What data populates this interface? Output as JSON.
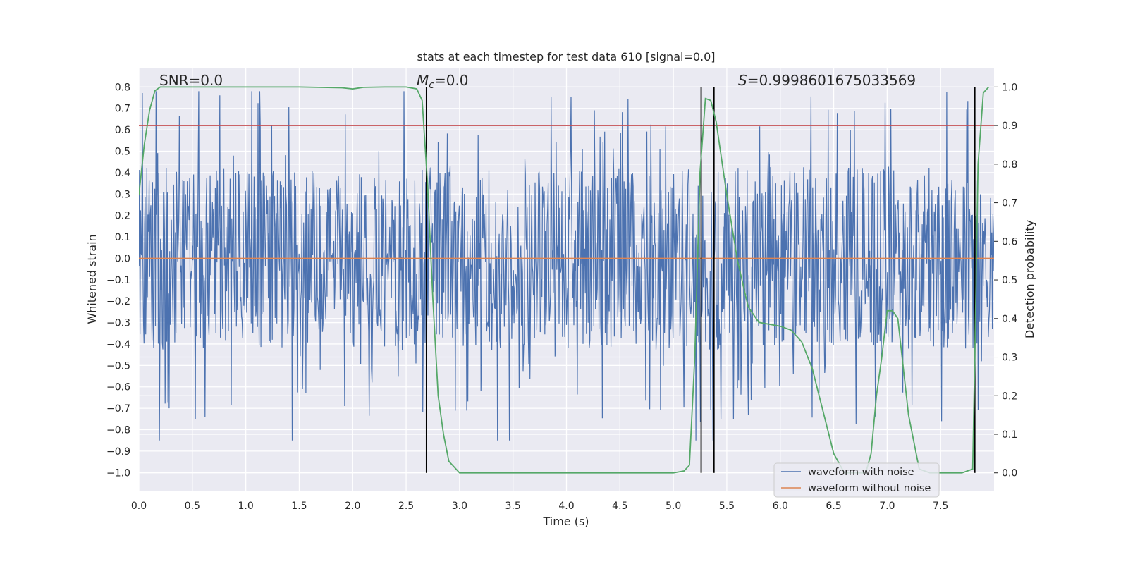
{
  "chart_data": {
    "type": "line",
    "title": "stats at each timestep for test data 610 [signal=0.0]",
    "xlabel": "Time (s)",
    "ylabel": "Whitened strain",
    "ylabel_right": "Detection probability",
    "xlim": [
      0.0,
      8.0
    ],
    "ylim": [
      -1.088,
      0.89
    ],
    "ylim_right": [
      -0.048,
      1.05
    ],
    "x_ticks": [
      "0.0",
      "0.5",
      "1.0",
      "1.5",
      "2.0",
      "2.5",
      "3.0",
      "3.5",
      "4.0",
      "4.5",
      "5.0",
      "5.5",
      "6.0",
      "6.5",
      "7.0",
      "7.5"
    ],
    "y_ticks": [
      "0.8",
      "0.7",
      "0.6",
      "0.5",
      "0.4",
      "0.3",
      "0.2",
      "0.1",
      "0.0",
      "−0.1",
      "−0.2",
      "−0.3",
      "−0.4",
      "−0.5",
      "−0.6",
      "−0.7",
      "−0.8",
      "−0.9",
      "−1.0"
    ],
    "y_ticks_right": [
      "1.0",
      "0.9",
      "0.8",
      "0.7",
      "0.6",
      "0.5",
      "0.4",
      "0.3",
      "0.2",
      "0.1",
      "0.0"
    ],
    "grid": true,
    "legend_position": "lower-right",
    "annotations": {
      "snr": "SNR=0.0",
      "mc_symbol": "M",
      "mc_sub": "c",
      "mc_value": "=0.0",
      "s_symbol": "S",
      "s_value": "=0.9998601675033569"
    },
    "series": [
      {
        "name": "waveform with noise",
        "color": "#4c72b0",
        "description_values": "dense noise band roughly between -0.42 and 0.44 with spikes up to 0.80 and down to -0.89"
      },
      {
        "name": "waveform without noise",
        "color": "#dd8452",
        "y": 0.0
      }
    ],
    "threshold": {
      "color": "#c44e52",
      "y_right": 0.9
    },
    "detection_probability": {
      "color": "#55a868",
      "x": [
        0.0,
        0.05,
        0.1,
        0.15,
        0.2,
        0.3,
        0.5,
        1.0,
        1.5,
        1.9,
        2.0,
        2.1,
        2.3,
        2.5,
        2.6,
        2.65,
        2.7,
        2.75,
        2.8,
        2.85,
        2.9,
        3.0,
        3.2,
        4.0,
        5.0,
        5.1,
        5.15,
        5.2,
        5.25,
        5.3,
        5.35,
        5.4,
        5.5,
        5.6,
        5.7,
        5.8,
        6.0,
        6.1,
        6.2,
        6.3,
        6.4,
        6.5,
        6.6,
        6.8,
        6.85,
        6.9,
        6.95,
        7.0,
        7.05,
        7.1,
        7.2,
        7.3,
        7.4,
        7.5,
        7.6,
        7.7,
        7.8,
        7.82,
        7.85,
        7.9,
        7.95
      ],
      "y": [
        0.72,
        0.85,
        0.94,
        0.99,
        1.0,
        1.0,
        1.0,
        1.0,
        1.0,
        0.998,
        0.995,
        0.999,
        1.0,
        1.0,
        0.995,
        0.965,
        0.75,
        0.45,
        0.2,
        0.1,
        0.03,
        0.0,
        0.0,
        0.0,
        0.0,
        0.005,
        0.02,
        0.3,
        0.78,
        0.97,
        0.965,
        0.91,
        0.72,
        0.55,
        0.43,
        0.39,
        0.38,
        0.37,
        0.34,
        0.27,
        0.16,
        0.05,
        0.0,
        0.0,
        0.05,
        0.2,
        0.3,
        0.42,
        0.42,
        0.4,
        0.15,
        0.01,
        0.0,
        0.0,
        0.0,
        0.0,
        0.01,
        0.3,
        0.8,
        0.985,
        1.0
      ]
    },
    "event_markers": {
      "color": "#000000",
      "x": [
        2.69,
        5.26,
        5.38,
        7.82
      ]
    }
  }
}
